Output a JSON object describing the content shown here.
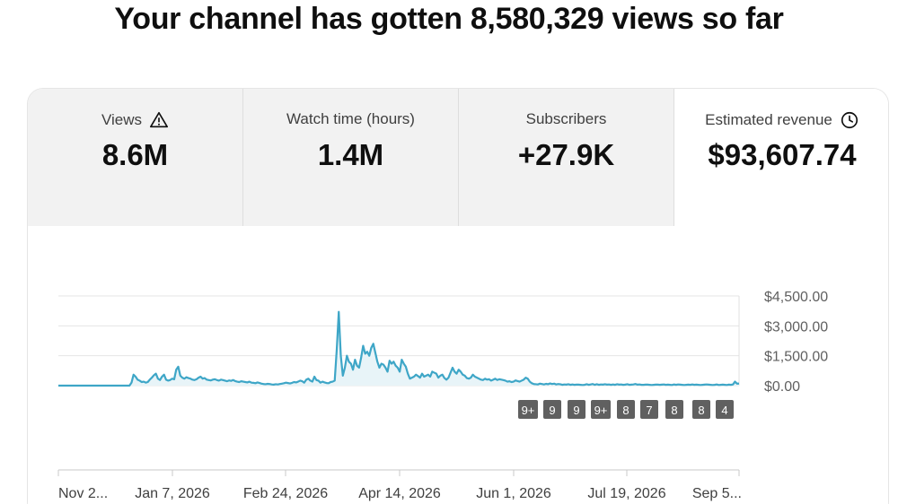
{
  "headline": "Your channel has gotten 8,580,329 views so far",
  "metrics": [
    {
      "label": "Views",
      "value": "8.6M",
      "icon": "warning-icon"
    },
    {
      "label": "Watch time (hours)",
      "value": "1.4M",
      "icon": ""
    },
    {
      "label": "Subscribers",
      "value": "+27.9K",
      "icon": ""
    },
    {
      "label": "Estimated revenue",
      "value": "$93,607.74",
      "icon": "clock-icon"
    }
  ],
  "colors": {
    "line": "#3ea6c7",
    "fill": "#e8f4f8",
    "badge": "#606060",
    "grid": "#e5e5e5",
    "active_tab": "#ffffff",
    "inactive_tab": "#f2f2f2"
  },
  "chart_data": {
    "type": "area",
    "y_ticks": [
      "$4,500.00",
      "$3,000.00",
      "$1,500.00",
      "$0.00"
    ],
    "y_tick_values": [
      4500,
      3000,
      1500,
      0
    ],
    "ylim": [
      0,
      4500
    ],
    "x_ticks": [
      "Nov 2...",
      "Jan 7, 2026",
      "Feb 24, 2026",
      "Apr 14, 2026",
      "Jun 1, 2026",
      "Jul 19, 2026",
      "Sep 5..."
    ],
    "annotation_badges": [
      "9+",
      "9",
      "9",
      "9+",
      "8",
      "7",
      "8",
      "8",
      "4"
    ],
    "series": [
      {
        "values": [
          0,
          0,
          0,
          0,
          0,
          0,
          0,
          0,
          0,
          0,
          0,
          0,
          0,
          0,
          0,
          0,
          0,
          0,
          0,
          0,
          0,
          0,
          0,
          0,
          0,
          0,
          0,
          0,
          0,
          0,
          0,
          0,
          0,
          0,
          0,
          0,
          150,
          550,
          450,
          300,
          250,
          180,
          200,
          150,
          180,
          300,
          400,
          520,
          600,
          350,
          280,
          450,
          550,
          300,
          250,
          280,
          350,
          320,
          800,
          950,
          500,
          400,
          350,
          420,
          380,
          350,
          300,
          280,
          320,
          400,
          450,
          350,
          380,
          300,
          280,
          260,
          300,
          320,
          280,
          250,
          300,
          280,
          250,
          220,
          260,
          240,
          280,
          230,
          200,
          180,
          220,
          200,
          180,
          160,
          200,
          150,
          140,
          120,
          160,
          130,
          100,
          80,
          70,
          90,
          80,
          60,
          50,
          70,
          60,
          80,
          100,
          120,
          150,
          130,
          110,
          140,
          180,
          160,
          200,
          250,
          220,
          150,
          300,
          350,
          250,
          200,
          450,
          280,
          250,
          150,
          200,
          160,
          130,
          120,
          180,
          200,
          250,
          1800,
          3700,
          1500,
          500,
          900,
          1500,
          1200,
          1100,
          800,
          1300,
          1000,
          900,
          1400,
          2000,
          1600,
          1700,
          1500,
          1900,
          2100,
          1650,
          1200,
          900,
          1100,
          1050,
          900,
          700,
          1250,
          1100,
          1200,
          1000,
          900,
          700,
          1300,
          1100,
          950,
          600,
          350,
          400,
          450,
          550,
          480,
          400,
          600,
          450,
          500,
          550,
          450,
          700,
          650,
          600,
          400,
          500,
          550,
          380,
          300,
          400,
          650,
          900,
          700,
          600,
          800,
          700,
          550,
          500,
          380,
          350,
          400,
          550,
          450,
          400,
          350,
          300,
          280,
          350,
          300,
          320,
          250,
          300,
          350,
          280,
          320,
          300,
          280,
          250,
          200,
          220,
          180,
          200,
          260,
          230,
          200,
          250,
          300,
          400,
          350,
          200,
          120,
          80,
          70,
          60,
          100,
          80,
          60,
          90,
          70,
          110,
          80,
          100,
          60,
          80,
          70,
          40,
          60,
          50,
          70,
          40,
          60,
          40,
          50,
          50,
          40,
          30,
          40,
          70,
          40,
          60,
          80,
          40,
          70,
          40,
          60,
          50,
          70,
          50,
          60,
          40,
          60,
          40,
          70,
          50,
          60,
          40,
          50,
          70,
          40,
          50,
          60,
          80,
          50,
          60,
          40,
          40,
          50,
          50,
          40,
          30,
          40,
          50,
          50,
          40,
          50,
          60,
          40,
          50,
          40,
          30,
          60,
          40,
          60,
          50,
          40,
          30,
          40,
          50,
          40,
          60,
          40,
          50,
          40,
          30,
          40,
          50,
          60,
          50,
          40,
          30,
          40,
          60,
          30,
          40,
          50,
          40,
          30,
          50,
          40,
          60,
          200,
          100,
          100
        ]
      }
    ]
  }
}
